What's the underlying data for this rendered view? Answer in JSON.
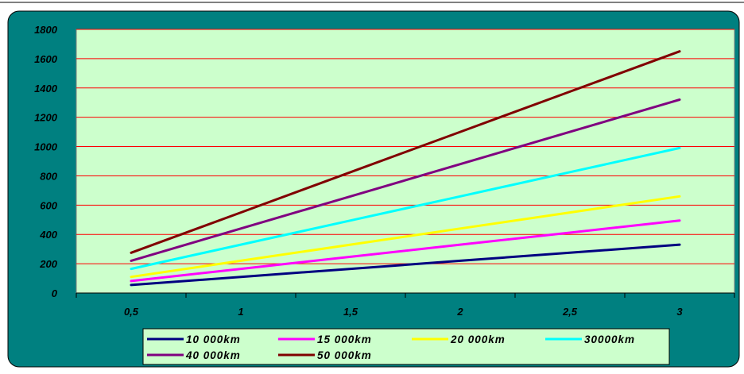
{
  "chart_data": {
    "type": "line",
    "title": "",
    "xlabel": "",
    "ylabel": "",
    "x": [
      "0,5",
      "1",
      "1,5",
      "2",
      "2,5",
      "3"
    ],
    "ylim": [
      0,
      1800
    ],
    "yticks": [
      "0",
      "200",
      "400",
      "600",
      "800",
      "1000",
      "1200",
      "1400",
      "1600",
      "1800"
    ],
    "grid": "horizontal",
    "legend_position": "bottom",
    "series": [
      {
        "name": "10 000km",
        "color": "#000080",
        "values": [
          55,
          110,
          165,
          220,
          275,
          330
        ]
      },
      {
        "name": "15 000km",
        "color": "#ff00ff",
        "values": [
          82,
          165,
          247,
          330,
          412,
          495
        ]
      },
      {
        "name": "20 000km",
        "color": "#ffff00",
        "values": [
          110,
          220,
          330,
          440,
          550,
          660
        ]
      },
      {
        "name": "30000km",
        "color": "#00ffff",
        "values": [
          165,
          330,
          495,
          660,
          825,
          990
        ]
      },
      {
        "name": "40 000km",
        "color": "#800080",
        "values": [
          220,
          440,
          660,
          880,
          1100,
          1320
        ]
      },
      {
        "name": "50 000km",
        "color": "#800000",
        "values": [
          275,
          550,
          825,
          1100,
          1375,
          1650
        ]
      }
    ],
    "colors": {
      "outer_background": "#008080",
      "plot_background": "#ccffcc",
      "gridline": "#ff0000",
      "legend_background": "#ccffcc"
    }
  }
}
